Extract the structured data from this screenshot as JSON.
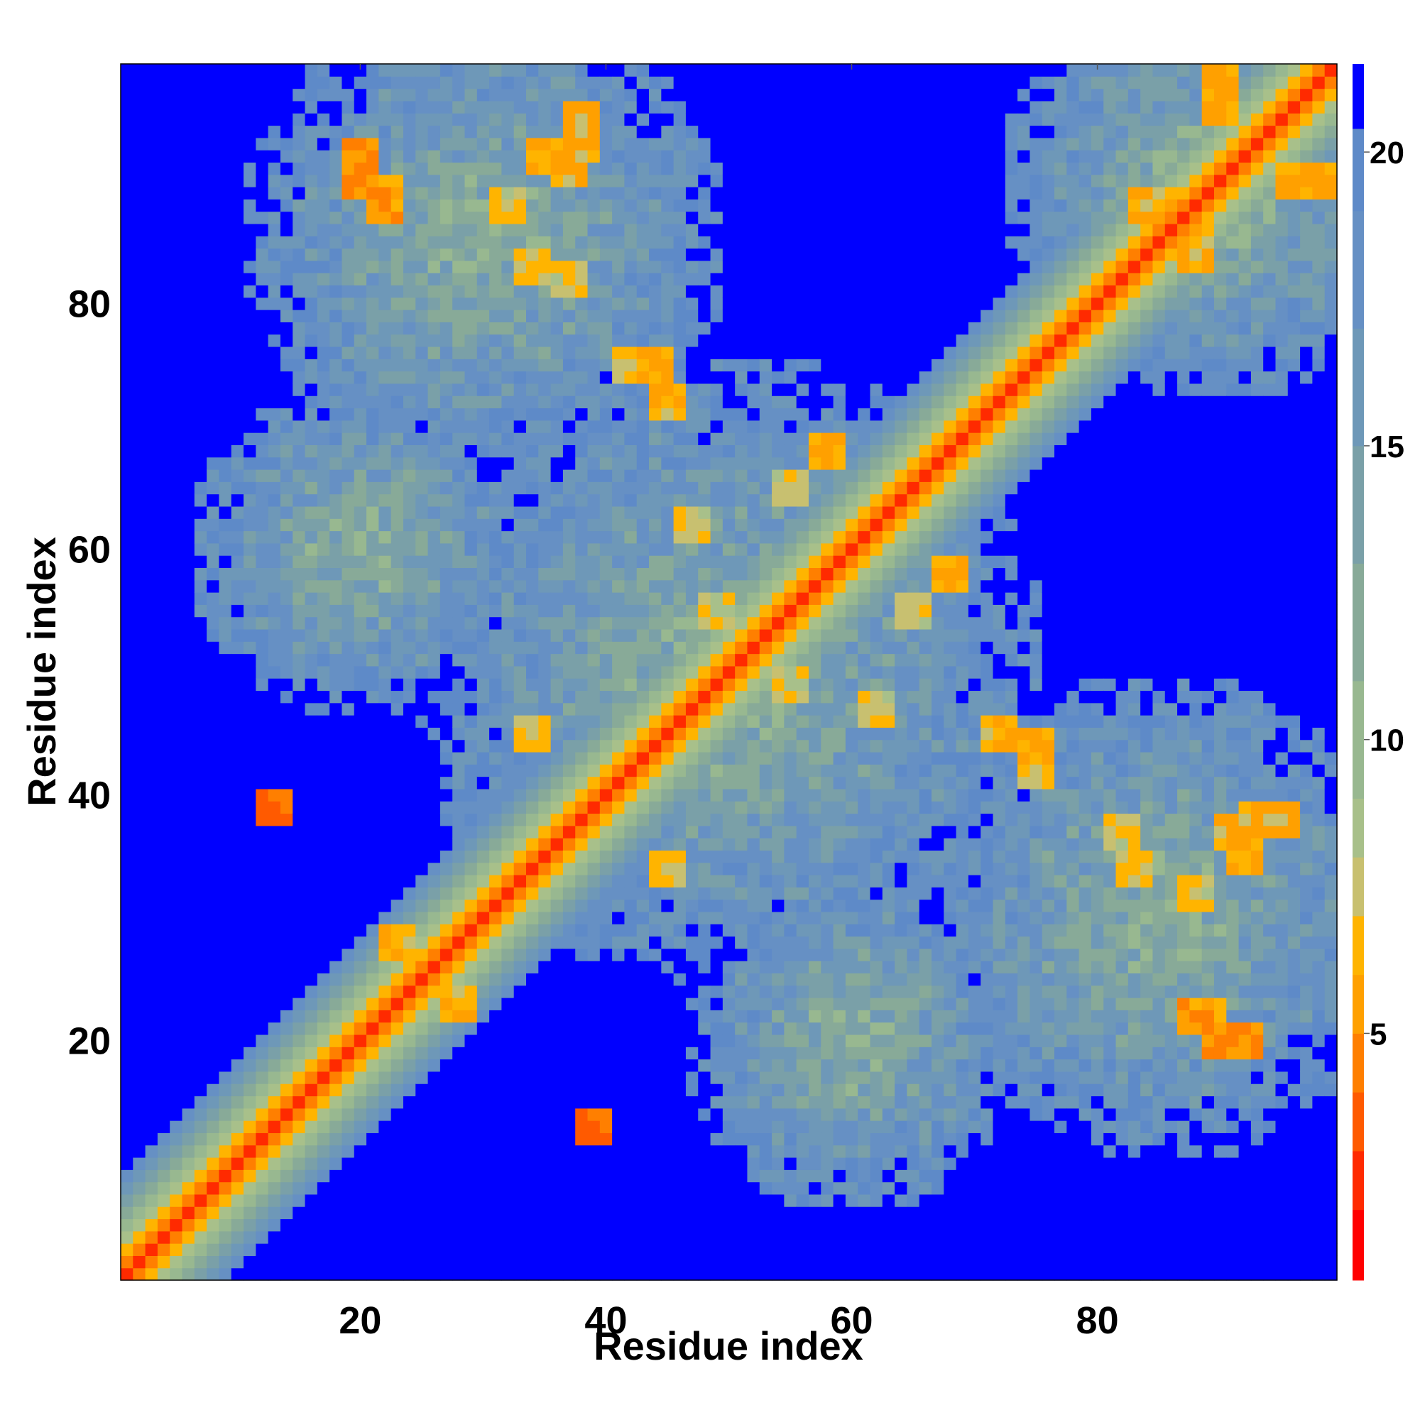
{
  "chart_data": {
    "type": "heatmap",
    "title": "",
    "xlabel": "Residue index",
    "ylabel": "Residue index",
    "n_residues": 99,
    "xlim": [
      1,
      99
    ],
    "ylim": [
      1,
      99
    ],
    "x_ticks": [
      20,
      40,
      60,
      80
    ],
    "y_ticks": [
      20,
      40,
      60,
      80
    ],
    "colorbar": {
      "ticks": [
        5,
        10,
        15,
        20
      ],
      "range": [
        0.8,
        21.5
      ],
      "placement": "right",
      "bands": [
        {
          "max": 2,
          "color": "#ff0000"
        },
        {
          "max": 3,
          "color": "#ff2a00"
        },
        {
          "max": 4,
          "color": "#ff5a00"
        },
        {
          "max": 5,
          "color": "#ff7f00"
        },
        {
          "max": 6,
          "color": "#ffa000"
        },
        {
          "max": 7,
          "color": "#ffb400"
        },
        {
          "max": 8,
          "color": "#c8c070"
        },
        {
          "max": 9,
          "color": "#a8c08a"
        },
        {
          "max": 11,
          "color": "#98b890"
        },
        {
          "max": 13,
          "color": "#88aa98"
        },
        {
          "max": 15,
          "color": "#7aa0a8"
        },
        {
          "max": 17,
          "color": "#6e98b8"
        },
        {
          "max": 19,
          "color": "#6690c4"
        },
        {
          "max": 20.4,
          "color": "#5e8ac8"
        },
        {
          "max": 99,
          "color": "#0000ff"
        }
      ]
    },
    "grid": false,
    "legend": "none",
    "value_description": "residue-residue distance; diagonal red, near-diagonal orange/green, distant contacts blue",
    "contact_clusters": [
      {
        "x": 20,
        "y": 92,
        "value": 4
      },
      {
        "x": 22,
        "y": 89,
        "value": 4
      },
      {
        "x": 35,
        "y": 92,
        "value": 5
      },
      {
        "x": 38,
        "y": 95,
        "value": 5
      },
      {
        "x": 32,
        "y": 88,
        "value": 6
      },
      {
        "x": 44,
        "y": 75,
        "value": 5
      },
      {
        "x": 45,
        "y": 72,
        "value": 5
      },
      {
        "x": 90,
        "y": 20,
        "value": 4
      },
      {
        "x": 88,
        "y": 22,
        "value": 4
      },
      {
        "x": 91,
        "y": 37,
        "value": 5
      },
      {
        "x": 93,
        "y": 38,
        "value": 5
      },
      {
        "x": 83,
        "y": 34,
        "value": 6
      },
      {
        "x": 84,
        "y": 88,
        "value": 5
      },
      {
        "x": 88,
        "y": 85,
        "value": 5
      },
      {
        "x": 96,
        "y": 90,
        "value": 5
      },
      {
        "x": 90,
        "y": 98,
        "value": 5
      },
      {
        "x": 13,
        "y": 39,
        "value": 3
      },
      {
        "x": 39,
        "y": 13,
        "value": 3
      },
      {
        "x": 58,
        "y": 68,
        "value": 5
      },
      {
        "x": 68,
        "y": 58,
        "value": 5
      },
      {
        "x": 45,
        "y": 34,
        "value": 6
      },
      {
        "x": 34,
        "y": 45,
        "value": 6
      },
      {
        "x": 28,
        "y": 23,
        "value": 5
      },
      {
        "x": 23,
        "y": 28,
        "value": 5
      },
      {
        "x": 72,
        "y": 45,
        "value": 6
      },
      {
        "x": 75,
        "y": 42,
        "value": 6
      },
      {
        "x": 62,
        "y": 47,
        "value": 6
      },
      {
        "x": 55,
        "y": 49,
        "value": 6
      },
      {
        "x": 65,
        "y": 55,
        "value": 6
      },
      {
        "x": 82,
        "y": 37,
        "value": 6
      }
    ]
  }
}
